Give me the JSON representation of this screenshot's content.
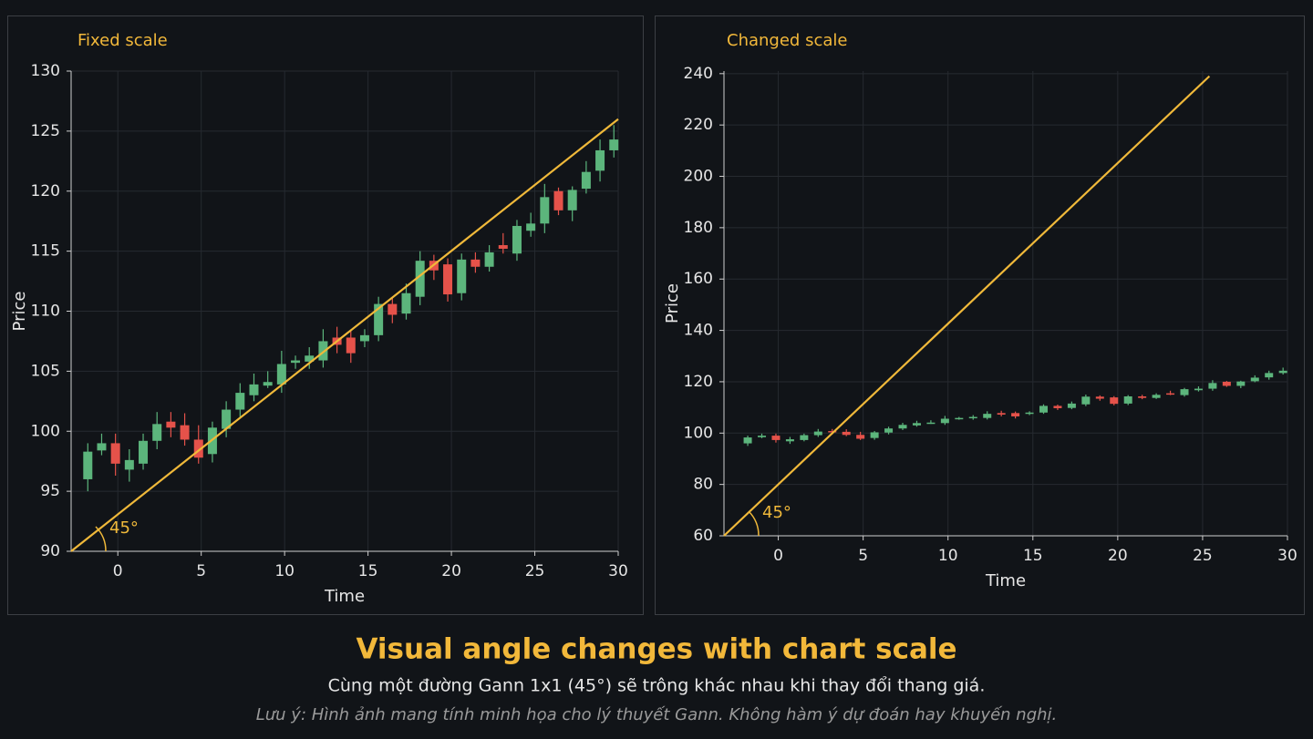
{
  "chart_data": [
    {
      "type": "candlestick",
      "title": "Fixed scale",
      "xlabel": "Time",
      "ylabel": "Price",
      "xlim": [
        -2.8,
        30
      ],
      "xticks": [
        0,
        5,
        10,
        15,
        20,
        25,
        30
      ],
      "ylim": [
        90,
        130
      ],
      "yticks": [
        90,
        95,
        100,
        105,
        110,
        115,
        120,
        125,
        130
      ],
      "grid": true,
      "up_color": "#5cb57c",
      "down_color": "#e5524a",
      "x": [
        -1.8,
        -0.97,
        -0.14,
        0.69,
        1.52,
        2.35,
        3.18,
        4.01,
        4.84,
        5.67,
        6.5,
        7.33,
        8.16,
        8.99,
        9.82,
        10.65,
        11.48,
        12.31,
        13.14,
        13.97,
        14.8,
        15.63,
        16.46,
        17.29,
        18.12,
        18.95,
        19.78,
        20.61,
        21.44,
        22.27,
        23.1,
        23.93,
        24.76,
        25.59,
        26.42,
        27.25,
        28.08,
        28.91,
        29.74
      ],
      "open": [
        96,
        98.4,
        99,
        96.8,
        97.3,
        99.2,
        100.8,
        100.5,
        99.3,
        98.1,
        100.2,
        101.8,
        103,
        103.8,
        103.9,
        105.7,
        105.8,
        105.9,
        107.8,
        107.8,
        107.5,
        108,
        110.6,
        109.8,
        111.2,
        114.2,
        113.9,
        111.5,
        114.3,
        113.7,
        115.5,
        114.8,
        116.7,
        117.3,
        120,
        118.4,
        120.2,
        121.7,
        123.4
      ],
      "high": [
        99,
        99.8,
        99.8,
        98.5,
        99.8,
        101.6,
        101.6,
        101.5,
        100.5,
        100.8,
        102.5,
        104,
        104.8,
        105,
        106.7,
        106.3,
        107,
        108.5,
        108.7,
        108.4,
        108.5,
        111.2,
        111.1,
        112.3,
        115,
        114.7,
        114.4,
        114.8,
        114.9,
        115.5,
        116.5,
        117.6,
        118.2,
        120.6,
        120.3,
        120.4,
        122.5,
        124.3,
        125.5
      ],
      "low": [
        95,
        98,
        96.3,
        95.8,
        96.8,
        98.5,
        99.5,
        98.8,
        97.3,
        97.4,
        99.5,
        101.2,
        102.5,
        103.6,
        103.2,
        105.2,
        105.2,
        105.3,
        106.5,
        105.7,
        107,
        107.5,
        109,
        109.3,
        110.5,
        112.6,
        110.8,
        110.9,
        113.2,
        113.3,
        114.8,
        114.2,
        116.2,
        116.5,
        118,
        117.5,
        119.8,
        120.8,
        122.8
      ],
      "close": [
        98.3,
        99,
        97.3,
        97.6,
        99.2,
        100.6,
        100.3,
        99.3,
        97.8,
        100.3,
        101.8,
        103.2,
        103.9,
        104.1,
        105.6,
        105.9,
        106.3,
        107.5,
        107.2,
        106.5,
        108,
        110.6,
        109.7,
        111.5,
        114.2,
        113.4,
        111.4,
        114.3,
        113.7,
        114.9,
        115.2,
        117.1,
        117.3,
        119.5,
        118.4,
        120.1,
        121.6,
        123.4,
        124.3
      ],
      "gann_line": {
        "x": [
          -2.8,
          30
        ],
        "y": [
          90,
          126
        ],
        "color": "#f0b93a"
      },
      "annotation": "45°"
    },
    {
      "type": "candlestick",
      "title": "Changed scale",
      "xlabel": "Time",
      "ylabel": "Price",
      "xlim": [
        -3.2,
        30
      ],
      "xticks": [
        0,
        5,
        10,
        15,
        20,
        25,
        30
      ],
      "ylim": [
        60,
        241
      ],
      "yticks": [
        60,
        80,
        100,
        120,
        140,
        160,
        180,
        200,
        220,
        240
      ],
      "grid": true,
      "up_color": "#5cb57c",
      "down_color": "#e5524a",
      "x": [
        -1.8,
        -0.97,
        -0.14,
        0.69,
        1.52,
        2.35,
        3.18,
        4.01,
        4.84,
        5.67,
        6.5,
        7.33,
        8.16,
        8.99,
        9.82,
        10.65,
        11.48,
        12.31,
        13.14,
        13.97,
        14.8,
        15.63,
        16.46,
        17.29,
        18.12,
        18.95,
        19.78,
        20.61,
        21.44,
        22.27,
        23.1,
        23.93,
        24.76,
        25.59,
        26.42,
        27.25,
        28.08,
        28.91,
        29.74
      ],
      "open": [
        96,
        98.4,
        99,
        96.8,
        97.3,
        99.2,
        100.8,
        100.5,
        99.3,
        98.1,
        100.2,
        101.8,
        103,
        103.8,
        103.9,
        105.7,
        105.8,
        105.9,
        107.8,
        107.8,
        107.5,
        108,
        110.6,
        109.8,
        111.2,
        114.2,
        113.9,
        111.5,
        114.3,
        113.7,
        115.5,
        114.8,
        116.7,
        117.3,
        120,
        118.4,
        120.2,
        121.7,
        123.4
      ],
      "high": [
        99,
        99.8,
        99.8,
        98.5,
        99.8,
        101.6,
        101.6,
        101.5,
        100.5,
        100.8,
        102.5,
        104,
        104.8,
        105,
        106.7,
        106.3,
        107,
        108.5,
        108.7,
        108.4,
        108.5,
        111.2,
        111.1,
        112.3,
        115,
        114.7,
        114.4,
        114.8,
        114.9,
        115.5,
        116.5,
        117.6,
        118.2,
        120.6,
        120.3,
        120.4,
        122.5,
        124.3,
        125.5
      ],
      "low": [
        95,
        98,
        96.3,
        95.8,
        96.8,
        98.5,
        99.5,
        98.8,
        97.3,
        97.4,
        99.5,
        101.2,
        102.5,
        103.6,
        103.2,
        105.2,
        105.2,
        105.3,
        106.5,
        105.7,
        107,
        107.5,
        109,
        109.3,
        110.5,
        112.6,
        110.8,
        110.9,
        113.2,
        113.3,
        114.8,
        114.2,
        116.2,
        116.5,
        118,
        117.5,
        119.8,
        120.8,
        122.8
      ],
      "close": [
        98.3,
        99,
        97.3,
        97.6,
        99.2,
        100.6,
        100.3,
        99.3,
        97.8,
        100.3,
        101.8,
        103.2,
        103.9,
        104.1,
        105.6,
        105.9,
        106.3,
        107.5,
        107.2,
        106.5,
        108,
        110.6,
        109.7,
        111.5,
        114.2,
        113.4,
        111.4,
        114.3,
        113.7,
        114.9,
        115.2,
        117.1,
        117.3,
        119.5,
        118.4,
        120.1,
        121.6,
        123.4,
        124.3
      ],
      "gann_line": {
        "x": [
          -3.2,
          25.4
        ],
        "y": [
          60,
          239
        ],
        "color": "#f0b93a"
      },
      "annotation": "45°"
    }
  ],
  "footer": {
    "title": "Visual angle changes with chart scale",
    "subtitle": "Cùng một đường Gann 1x1 (45°) sẽ trông khác nhau khi thay đổi thang giá.",
    "note": "Lưu ý: Hình ảnh mang tính minh họa cho lý thuyết Gann. Không hàm ý dự đoán hay khuyến nghị."
  }
}
